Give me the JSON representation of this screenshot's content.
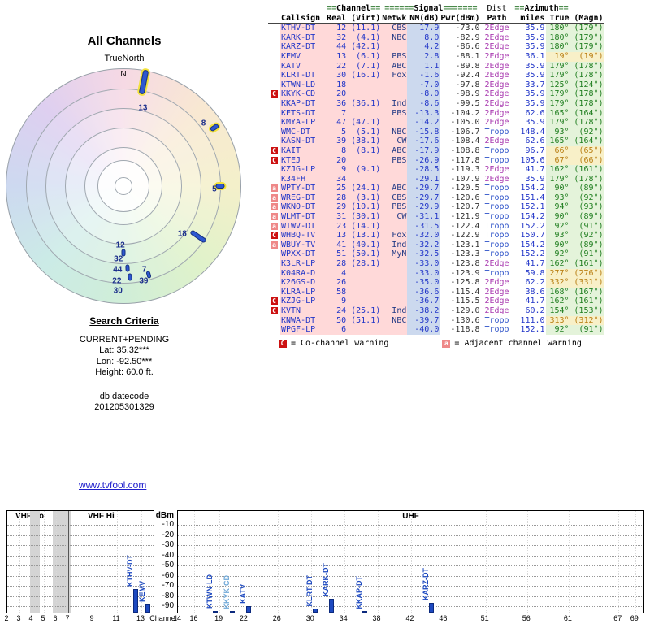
{
  "link": {
    "text": "www.tvfool.com"
  },
  "legend": {
    "c_symbol": "C",
    "c_text": "= Co-channel warning",
    "a_symbol": "a",
    "a_text": "= Adjacent channel warning"
  },
  "search_criteria": {
    "title": "Search Criteria",
    "mode": "CURRENT+PENDING",
    "lat": "Lat: 35.32***",
    "lon": "Lon: -92.50***",
    "height": "Height: 60.0 ft.",
    "datecode_label": "db datecode",
    "datecode": "201205301329"
  },
  "chart_data": [
    {
      "type": "radar",
      "title": "All Channels",
      "north_label": "TrueNorth",
      "n_label": "N",
      "points": [
        {
          "ch": "13",
          "az": 14,
          "r": 99
        },
        {
          "ch": "8",
          "az": 52,
          "r": 125
        },
        {
          "ch": "5",
          "az": 92,
          "r": 112
        },
        {
          "ch": "18",
          "az": 129,
          "r": 93
        },
        {
          "ch": "12",
          "az": 183,
          "r": 73
        },
        {
          "ch": "32",
          "az": 184,
          "r": 90
        },
        {
          "ch": "44",
          "az": 184,
          "r": 103
        },
        {
          "ch": "22",
          "az": 184,
          "r": 117
        },
        {
          "ch": "30",
          "az": 183,
          "r": 129
        },
        {
          "ch": "7",
          "az": 166,
          "r": 106
        },
        {
          "ch": "39",
          "az": 168,
          "r": 120
        }
      ],
      "markers": [
        {
          "az": 11,
          "r": 130,
          "len": 30,
          "w": 7,
          "yellow": true
        },
        {
          "az": 57,
          "r": 133,
          "len": 11,
          "w": 6,
          "yellow": true
        },
        {
          "az": 90,
          "r": 119,
          "len": 11,
          "w": 6,
          "yellow": true
        },
        {
          "az": 124,
          "r": 111,
          "len": 22,
          "w": 6,
          "yellow": false
        },
        {
          "az": 180,
          "r": 82,
          "len": 9,
          "w": 5,
          "yellow": false
        },
        {
          "az": 177,
          "r": 101,
          "len": 9,
          "w": 5,
          "yellow": false
        },
        {
          "az": 176,
          "r": 112,
          "len": 9,
          "w": 5,
          "yellow": false
        },
        {
          "az": 164,
          "r": 113,
          "len": 9,
          "w": 5,
          "yellow": false
        }
      ]
    },
    {
      "type": "table",
      "header_groups": [
        {
          "text": "",
          "span": 2
        },
        {
          "pre": "==",
          "word": "Channel",
          "post": "==",
          "span": 2
        },
        {
          "pre": "======",
          "word": "Signal",
          "post": "=======",
          "span": 3
        },
        {
          "text": "Dist",
          "span": 1
        },
        {
          "pre": "==",
          "word": "Azimuth",
          "post": "==",
          "span": 2
        }
      ],
      "columns": [
        "",
        "Callsign",
        "Real",
        "(Virt)",
        "Netwk",
        "NM(dB)",
        "Pwr(dBm)",
        "Path",
        "miles",
        "True",
        "(Magn)"
      ],
      "rows": [
        [
          "",
          "KTHV-DT",
          "12",
          "(11.1)",
          "CBS",
          "17.9",
          "-73.0",
          "2Edge",
          "35.9",
          "180°",
          "(179°)",
          "g"
        ],
        [
          "",
          "KARK-DT",
          "32",
          "(4.1)",
          "NBC",
          "8.0",
          "-82.9",
          "2Edge",
          "35.9",
          "180°",
          "(179°)",
          "g"
        ],
        [
          "",
          "KARZ-DT",
          "44",
          "(42.1)",
          "",
          "4.2",
          "-86.6",
          "2Edge",
          "35.9",
          "180°",
          "(179°)",
          "g"
        ],
        [
          "",
          "KEMV",
          "13",
          "(6.1)",
          "PBS",
          "2.8",
          "-88.1",
          "2Edge",
          "36.1",
          "19°",
          "(19°)",
          "o"
        ],
        [
          "",
          "KATV",
          "22",
          "(7.1)",
          "ABC",
          "1.1",
          "-89.8",
          "2Edge",
          "35.9",
          "179°",
          "(178°)",
          "g"
        ],
        [
          "",
          "KLRT-DT",
          "30",
          "(16.1)",
          "Fox",
          "-1.6",
          "-92.4",
          "2Edge",
          "35.9",
          "179°",
          "(178°)",
          "g"
        ],
        [
          "",
          "KTWN-LD",
          "18",
          "",
          "",
          "-7.0",
          "-97.8",
          "2Edge",
          "33.7",
          "125°",
          "(124°)",
          "g"
        ],
        [
          "C",
          "KKYK-CD",
          "20",
          "",
          "",
          "-8.0",
          "-98.9",
          "2Edge",
          "35.9",
          "179°",
          "(178°)",
          "g"
        ],
        [
          "",
          "KKAP-DT",
          "36",
          "(36.1)",
          "Ind",
          "-8.6",
          "-99.5",
          "2Edge",
          "35.9",
          "179°",
          "(178°)",
          "g"
        ],
        [
          "",
          "KETS-DT",
          "7",
          "",
          "PBS",
          "-13.3",
          "-104.2",
          "2Edge",
          "62.6",
          "165°",
          "(164°)",
          "g"
        ],
        [
          "",
          "KMYA-LP",
          "47",
          "(47.1)",
          "",
          "-14.2",
          "-105.0",
          "2Edge",
          "35.9",
          "179°",
          "(178°)",
          "g"
        ],
        [
          "",
          "WMC-DT",
          "5",
          "(5.1)",
          "NBC",
          "-15.8",
          "-106.7",
          "Tropo",
          "148.4",
          "93°",
          "(92°)",
          "g"
        ],
        [
          "",
          "KASN-DT",
          "39",
          "(38.1)",
          "CW",
          "-17.6",
          "-108.4",
          "2Edge",
          "62.6",
          "165°",
          "(164°)",
          "g"
        ],
        [
          "C",
          "KAIT",
          "8",
          "(8.1)",
          "ABC",
          "-17.9",
          "-108.8",
          "Tropo",
          "96.7",
          "66°",
          "(65°)",
          "o"
        ],
        [
          "C",
          "KTEJ",
          "20",
          "",
          "PBS",
          "-26.9",
          "-117.8",
          "Tropo",
          "105.6",
          "67°",
          "(66°)",
          "o"
        ],
        [
          "",
          "KZJG-LP",
          "9",
          "(9.1)",
          "",
          "-28.5",
          "-119.3",
          "2Edge",
          "41.7",
          "162°",
          "(161°)",
          "g"
        ],
        [
          "",
          "K34FH",
          "34",
          "",
          "",
          "-29.1",
          "-107.9",
          "2Edge",
          "35.9",
          "179°",
          "(178°)",
          "g"
        ],
        [
          "a",
          "WPTY-DT",
          "25",
          "(24.1)",
          "ABC",
          "-29.7",
          "-120.5",
          "Tropo",
          "154.2",
          "90°",
          "(89°)",
          "g"
        ],
        [
          "a",
          "WREG-DT",
          "28",
          "(3.1)",
          "CBS",
          "-29.7",
          "-120.6",
          "Tropo",
          "151.4",
          "93°",
          "(92°)",
          "g"
        ],
        [
          "a",
          "WKNO-DT",
          "29",
          "(10.1)",
          "PBS",
          "-29.9",
          "-120.7",
          "Tropo",
          "152.1",
          "94°",
          "(93°)",
          "g"
        ],
        [
          "a",
          "WLMT-DT",
          "31",
          "(30.1)",
          "CW",
          "-31.1",
          "-121.9",
          "Tropo",
          "154.2",
          "90°",
          "(89°)",
          "g"
        ],
        [
          "a",
          "WTWV-DT",
          "23",
          "(14.1)",
          "",
          "-31.5",
          "-122.4",
          "Tropo",
          "152.2",
          "92°",
          "(91°)",
          "g"
        ],
        [
          "C",
          "WHBQ-TV",
          "13",
          "(13.1)",
          "Fox",
          "-32.0",
          "-122.9",
          "Tropo",
          "150.7",
          "93°",
          "(92°)",
          "g"
        ],
        [
          "a",
          "WBUY-TV",
          "41",
          "(40.1)",
          "Ind",
          "-32.2",
          "-123.1",
          "Tropo",
          "154.2",
          "90°",
          "(89°)",
          "g"
        ],
        [
          "",
          "WPXX-DT",
          "51",
          "(50.1)",
          "MyN",
          "-32.5",
          "-123.3",
          "Tropo",
          "152.2",
          "92°",
          "(91°)",
          "g"
        ],
        [
          "",
          "K3LR-LP",
          "28",
          "(28.1)",
          "",
          "-33.0",
          "-123.8",
          "2Edge",
          "41.7",
          "162°",
          "(161°)",
          "g"
        ],
        [
          "",
          "K04RA-D",
          "4",
          "",
          "",
          "-33.0",
          "-123.9",
          "Tropo",
          "59.8",
          "277°",
          "(276°)",
          "o"
        ],
        [
          "",
          "K26GS-D",
          "26",
          "",
          "",
          "-35.0",
          "-125.8",
          "2Edge",
          "62.2",
          "332°",
          "(331°)",
          "o"
        ],
        [
          "",
          "KLRA-LP",
          "58",
          "",
          "",
          "-36.6",
          "-115.4",
          "2Edge",
          "38.6",
          "168°",
          "(167°)",
          "g"
        ],
        [
          "C",
          "KZJG-LP",
          "9",
          "",
          "",
          "-36.7",
          "-115.5",
          "2Edge",
          "41.7",
          "162°",
          "(161°)",
          "g"
        ],
        [
          "C",
          "KVTN",
          "24",
          "(25.1)",
          "Ind",
          "-38.2",
          "-129.0",
          "2Edge",
          "60.2",
          "154°",
          "(153°)",
          "g"
        ],
        [
          "",
          "KNWA-DT",
          "50",
          "(51.1)",
          "NBC",
          "-39.7",
          "-130.6",
          "Tropo",
          "111.0",
          "313°",
          "(312°)",
          "o"
        ],
        [
          "",
          "WPGF-LP",
          "6",
          "",
          "",
          "-40.0",
          "-118.8",
          "Tropo",
          "152.1",
          "92°",
          "(91°)",
          "g"
        ]
      ]
    },
    {
      "type": "bar",
      "ylabel": "dBm",
      "ylim": [
        -10,
        -98
      ],
      "bands": {
        "vhf_lo": "VHF Lo",
        "vhf_hi": "VHF Hi",
        "uhf": "UHF",
        "dbm": "dBm",
        "channel": "Channel"
      },
      "dbm_ticks": [
        -10,
        -20,
        -30,
        -40,
        -50,
        -60,
        -70,
        -80,
        -90
      ],
      "vhf": {
        "ch_min": 2,
        "ch_max": 13,
        "divider_ch": 7,
        "ticks": [
          2,
          3,
          4,
          5,
          6,
          7,
          9,
          11,
          13
        ],
        "shaded": [
          [
            3.85,
            4.65
          ],
          [
            5.7,
            7.25
          ]
        ],
        "stations": [
          {
            "callsign": "KTHV-DT",
            "ch": 12,
            "pwr": -73.0
          },
          {
            "callsign": "KEMV",
            "ch": 13,
            "pwr": -88.1
          }
        ]
      },
      "uhf": {
        "ch_min": 14,
        "ch_max": 69,
        "ticks": [
          14,
          16,
          19,
          22,
          26,
          30,
          34,
          38,
          42,
          46,
          51,
          56,
          61,
          67,
          69
        ],
        "stations": [
          {
            "callsign": "KTWN-LD",
            "ch": 18,
            "pwr": -97.8
          },
          {
            "callsign": "KKYK-CD",
            "ch": 20,
            "pwr": -98.9,
            "light": true
          },
          {
            "callsign": "KATV",
            "ch": 22,
            "pwr": -89.8
          },
          {
            "callsign": "KLRT-DT",
            "ch": 30,
            "pwr": -92.4
          },
          {
            "callsign": "KARK-DT",
            "ch": 32,
            "pwr": -82.9
          },
          {
            "callsign": "KKAP-DT",
            "ch": 36,
            "pwr": -99.5
          },
          {
            "callsign": "KARZ-DT",
            "ch": 44,
            "pwr": -86.6
          }
        ]
      }
    }
  ]
}
